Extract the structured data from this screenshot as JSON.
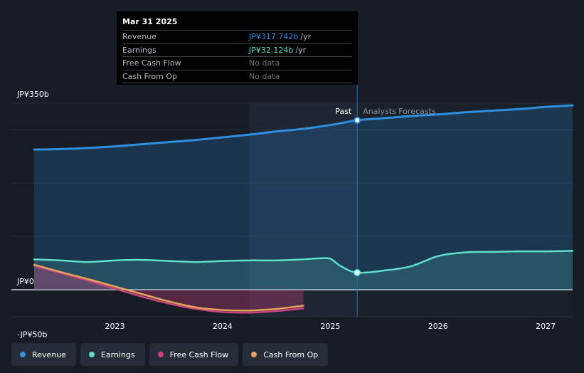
{
  "colors": {
    "revenue": "#2f8fe0",
    "earnings": "#5fe0cf",
    "free_cash_flow": "#c9427a",
    "cash_from_op": "#e2a45c",
    "background": "#161b25"
  },
  "tooltip": {
    "date": "Mar 31 2025",
    "rows": [
      {
        "label": "Revenue",
        "value": "JP¥317.742b",
        "unit": "/yr",
        "color": "#2f8fe0"
      },
      {
        "label": "Earnings",
        "value": "JP¥32.124b",
        "unit": "/yr",
        "color": "#5fe0cf"
      },
      {
        "label": "Free Cash Flow",
        "value": "No data",
        "unit": "",
        "color": "#6b7079"
      },
      {
        "label": "Cash From Op",
        "value": "No data",
        "unit": "",
        "color": "#6b7079"
      }
    ]
  },
  "legend": [
    {
      "label": "Revenue",
      "color": "#2f8fe0"
    },
    {
      "label": "Earnings",
      "color": "#5fe0cf"
    },
    {
      "label": "Free Cash Flow",
      "color": "#c9427a"
    },
    {
      "label": "Cash From Op",
      "color": "#e2a45c"
    }
  ],
  "chart_data": {
    "type": "line",
    "y_unit": "JP¥ billions",
    "ylim": [
      -50,
      350
    ],
    "xlim": [
      2022.2,
      2027.25
    ],
    "y_tick_labels": [
      {
        "value": 350,
        "label": "JP¥350b"
      },
      {
        "value": 0,
        "label": "JP¥0"
      },
      {
        "value": -50,
        "label": "-JP¥50b"
      }
    ],
    "x_tick_labels": [
      {
        "value": 2023,
        "label": "2023"
      },
      {
        "value": 2024,
        "label": "2024"
      },
      {
        "value": 2025,
        "label": "2025"
      },
      {
        "value": 2026,
        "label": "2026"
      },
      {
        "value": 2027,
        "label": "2027"
      }
    ],
    "gridlines": [
      350,
      300,
      200,
      100,
      0
    ],
    "past_label": "Past",
    "forecast_label": "Analysts Forecasts",
    "past_end": 2025.25,
    "highlight_range": [
      2024.25,
      2025.25
    ],
    "series": [
      {
        "name": "Revenue",
        "key": "revenue",
        "fill": true,
        "x": [
          2022.25,
          2022.5,
          2022.75,
          2023.0,
          2023.25,
          2023.5,
          2023.75,
          2024.0,
          2024.25,
          2024.5,
          2024.75,
          2025.0,
          2025.25,
          2025.5,
          2025.75,
          2026.0,
          2026.25,
          2026.5,
          2026.75,
          2027.0,
          2027.25
        ],
        "y": [
          263,
          264,
          266,
          269,
          273,
          277,
          281,
          286,
          291,
          297,
          302,
          309,
          318,
          322,
          326,
          329,
          333,
          336,
          339,
          343,
          346
        ]
      },
      {
        "name": "Earnings",
        "key": "earnings",
        "fill": true,
        "x": [
          2022.25,
          2022.5,
          2022.75,
          2023.0,
          2023.25,
          2023.5,
          2023.75,
          2024.0,
          2024.25,
          2024.5,
          2024.75,
          2024.9,
          2025.0,
          2025.1,
          2025.25,
          2025.5,
          2025.75,
          2026.0,
          2026.25,
          2026.5,
          2026.75,
          2027.0,
          2027.25
        ],
        "y": [
          57,
          55,
          52,
          55,
          56,
          54,
          52,
          54,
          55,
          55,
          57,
          59,
          58,
          44,
          32,
          36,
          44,
          63,
          70,
          71,
          72,
          72,
          73
        ]
      },
      {
        "name": "Free Cash Flow",
        "key": "free_cash_flow",
        "fill": true,
        "x": [
          2022.25,
          2022.5,
          2022.75,
          2023.0,
          2023.25,
          2023.5,
          2023.75,
          2024.0,
          2024.25,
          2024.5,
          2024.75
        ],
        "y": [
          45,
          31,
          17,
          2,
          -13,
          -26,
          -36,
          -42,
          -43,
          -40,
          -35
        ]
      },
      {
        "name": "Cash From Op",
        "key": "cash_from_op",
        "fill": false,
        "x": [
          2022.25,
          2022.5,
          2022.75,
          2023.0,
          2023.25,
          2023.5,
          2023.75,
          2024.0,
          2024.25,
          2024.5,
          2024.75
        ],
        "y": [
          47,
          33,
          20,
          6,
          -8,
          -22,
          -33,
          -38,
          -39,
          -36,
          -30
        ]
      }
    ],
    "markers": [
      {
        "series": "revenue",
        "x": 2025.25,
        "y": 318
      },
      {
        "series": "earnings",
        "x": 2025.25,
        "y": 32
      }
    ]
  }
}
